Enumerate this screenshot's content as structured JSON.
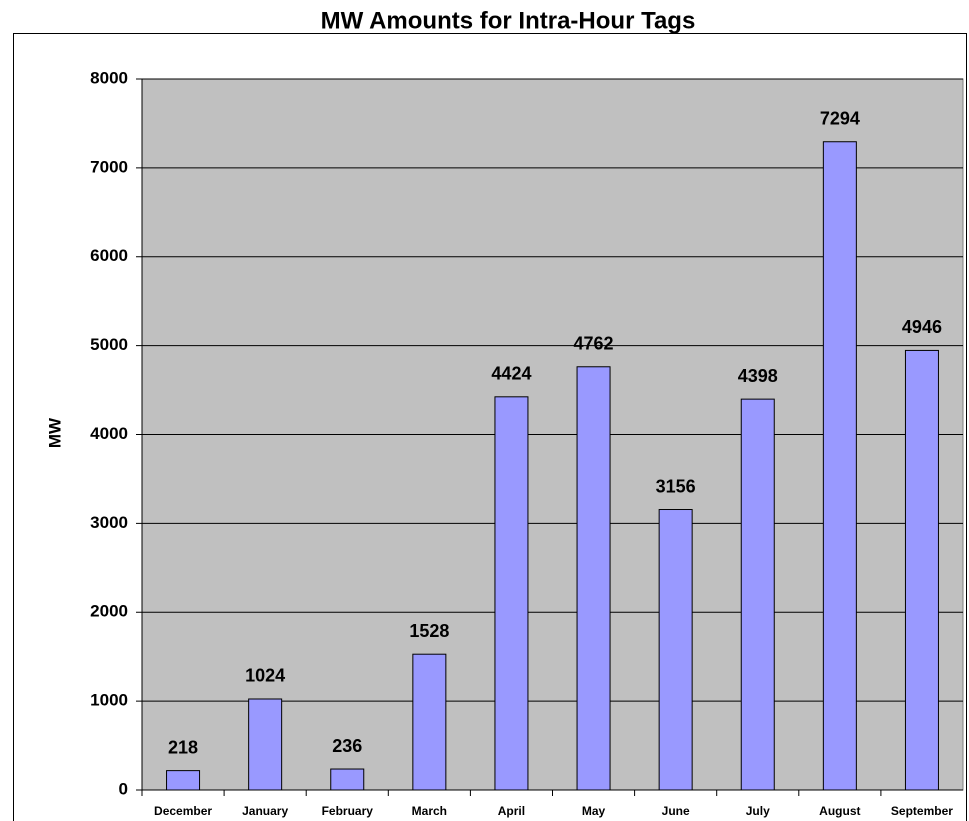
{
  "chart_data": {
    "type": "bar",
    "title": "MW Amounts for Intra-Hour Tags",
    "y_label": "MW",
    "categories": [
      "December",
      "January",
      "February",
      "March",
      "April",
      "May",
      "June",
      "July",
      "August",
      "September"
    ],
    "values": [
      218,
      1024,
      236,
      1528,
      4424,
      4762,
      3156,
      4398,
      7294,
      4946
    ],
    "color": "#9999ff",
    "plot_background": "#c0c0c0",
    "ylim": [
      0,
      8000
    ],
    "yticks": [
      0,
      1000,
      2000,
      3000,
      4000,
      5000,
      6000,
      7000,
      8000
    ],
    "grid": true
  }
}
